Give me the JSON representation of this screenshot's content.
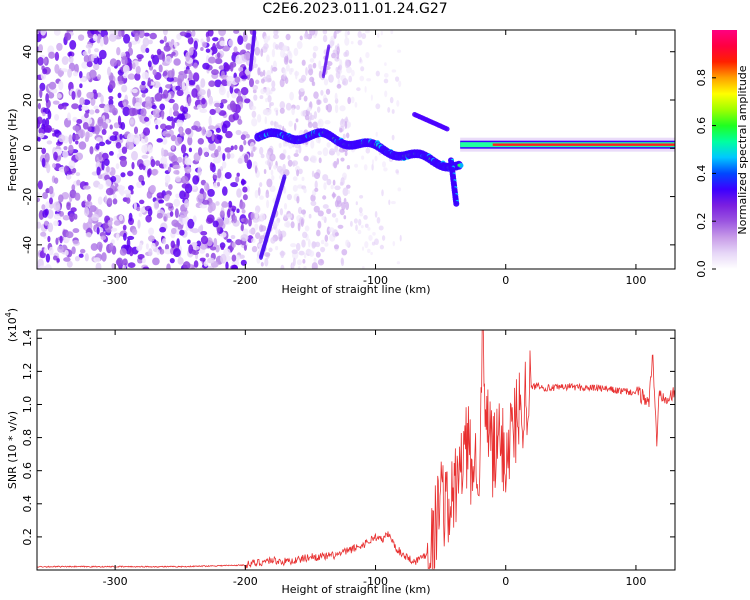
{
  "title": "C2E6.2023.011.01.24.G27",
  "colors": {
    "snr_line": "#e83030",
    "colormap": [
      "#ffffff",
      "#e6d6f7",
      "#c79be8",
      "#9b55e0",
      "#7a1fe0",
      "#3c00ff",
      "#0048ff",
      "#00c8ff",
      "#00ffa0",
      "#20ff20",
      "#a0ff00",
      "#ffff00",
      "#ffa000",
      "#ff2000",
      "#ff0040",
      "#ff0080"
    ]
  },
  "chart_data": [
    {
      "type": "heatmap",
      "xlabel": "Height of straight line (km)",
      "ylabel": "Frequency (Hz)",
      "xlim": [
        -360,
        130
      ],
      "ylim": [
        -50,
        49
      ],
      "xticks": [
        "-300",
        "-200",
        "-100",
        "0",
        "100"
      ],
      "xtick_values": [
        -300,
        -200,
        -100,
        0,
        100
      ],
      "yticks": [
        "40",
        "20",
        "0",
        "-20",
        "-40"
      ],
      "ytick_values": [
        40,
        20,
        0,
        -20,
        -40
      ],
      "colorbar": {
        "label": "Normalized spectral amplitude",
        "range": [
          0,
          1
        ],
        "ticks": [
          "0.0",
          "0.2",
          "0.4",
          "0.6",
          "0.8"
        ],
        "tick_values": [
          0,
          0.2,
          0.4,
          0.6,
          0.8
        ]
      }
    },
    {
      "type": "line",
      "xlabel": "Height of straight line (km)",
      "ylabel": "SNR (10 * v/v)",
      "yscale_note": "(x10",
      "yscale_exp": "4",
      "yscale_close": ")",
      "xlim": [
        -360,
        130
      ],
      "ylim": [
        0,
        1.45
      ],
      "xticks": [
        "-300",
        "-200",
        "-100",
        "0",
        "100"
      ],
      "xtick_values": [
        -300,
        -200,
        -100,
        0,
        100
      ],
      "yticks": [
        "0.2",
        "0.4",
        "0.6",
        "0.8",
        "1.0",
        "1.2",
        "1.4"
      ],
      "ytick_values": [
        0.2,
        0.4,
        0.6,
        0.8,
        1.0,
        1.2,
        1.4
      ],
      "series": [
        {
          "x": [
            -360,
            -300,
            -250,
            -200,
            -180,
            -170,
            -160,
            -150,
            -140,
            -130,
            -120,
            -110,
            -100,
            -95,
            -90,
            -85,
            -80,
            -70,
            -60,
            -55,
            -50,
            -45,
            -40,
            -35,
            -30,
            -25,
            -20,
            -18,
            -15,
            -12,
            -10,
            -5,
            0,
            5,
            10,
            15,
            20,
            25,
            30,
            40,
            50,
            60,
            70,
            80,
            90,
            100,
            105,
            110,
            113,
            116,
            118,
            120,
            125,
            130
          ],
          "y": [
            0.02,
            0.02,
            0.02,
            0.03,
            0.06,
            0.05,
            0.06,
            0.08,
            0.08,
            0.09,
            0.12,
            0.15,
            0.2,
            0.18,
            0.22,
            0.14,
            0.1,
            0.05,
            0.1,
            0.2,
            0.5,
            0.35,
            0.45,
            0.6,
            0.75,
            0.6,
            0.72,
            1.4,
            0.8,
            0.9,
            0.65,
            0.78,
            0.7,
            0.85,
            0.95,
            1.05,
            1.1,
            1.12,
            1.1,
            1.1,
            1.11,
            1.1,
            1.1,
            1.09,
            1.08,
            1.07,
            1.05,
            1.02,
            1.3,
            0.75,
            1.1,
            1.06,
            1.05,
            1.06
          ]
        }
      ]
    }
  ]
}
